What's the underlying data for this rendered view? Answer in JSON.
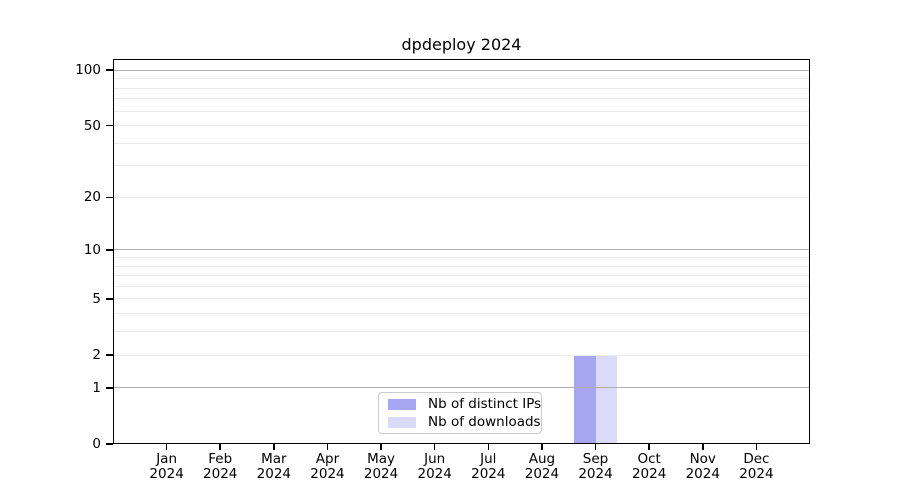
{
  "chart_data": {
    "type": "bar",
    "title": "dpdeploy 2024",
    "categories": [
      "Jan",
      "Feb",
      "Mar",
      "Apr",
      "May",
      "Jun",
      "Jul",
      "Aug",
      "Sep",
      "Oct",
      "Nov",
      "Dec"
    ],
    "category_year": "2024",
    "series": [
      {
        "name": "Nb of distinct IPs",
        "color": "#a6a6f3",
        "values": [
          0,
          0,
          0,
          0,
          0,
          0,
          0,
          0,
          2,
          0,
          0,
          0
        ]
      },
      {
        "name": "Nb of downloads",
        "color": "#dbdbf9",
        "values": [
          0,
          0,
          0,
          0,
          0,
          0,
          0,
          0,
          2,
          0,
          0,
          0
        ]
      }
    ],
    "y_axis": {
      "scale": "log1p",
      "ticks": [
        100,
        50,
        20,
        10,
        5,
        2,
        1,
        0
      ],
      "major_gridlines": [
        1,
        10,
        100
      ],
      "minor_gridlines": [
        2,
        3,
        4,
        5,
        6,
        7,
        8,
        9,
        20,
        30,
        40,
        50,
        60,
        70,
        80,
        90
      ],
      "max": 115,
      "min": 0
    },
    "legend": {
      "position": "lower center"
    },
    "colors": {
      "major_grid": "#b0b0b0",
      "minor_grid": "#ebebeb",
      "axis": "#000000",
      "background": "#ffffff"
    },
    "grid": "on"
  }
}
